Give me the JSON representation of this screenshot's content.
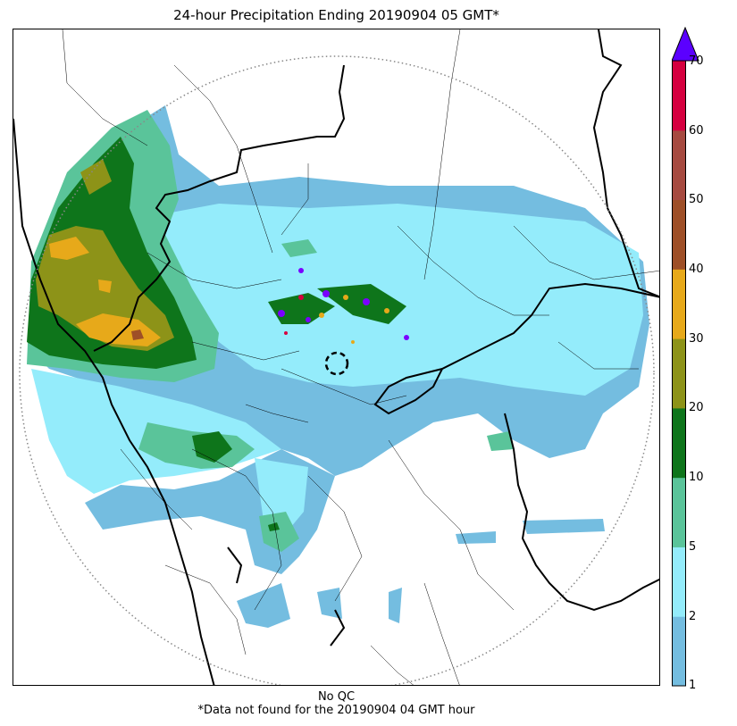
{
  "title": "24-hour Precipitation Ending 20190904 05 GMT*",
  "footer": {
    "line1": "No QC",
    "line2": "*Data not found for the 20190904 04 GMT hour"
  },
  "colorbar": {
    "levels": [
      "1",
      "2",
      "5",
      "10",
      "20",
      "30",
      "40",
      "50",
      "60",
      "70"
    ],
    "colors": [
      "#74bde0",
      "#94ecfb",
      "#5ac49a",
      "#0e751b",
      "#8d9318",
      "#e7a91a",
      "#9e4f27",
      "#a64a40",
      "#d5003f"
    ],
    "extend_color": "#5b00ff"
  },
  "map": {
    "radar_range_ring": "dotted",
    "radar_center": "dashed-circle",
    "notable_colors": {
      "light_blue": "#74bde0",
      "cyan": "#94ecfb",
      "green": "#5ac49a",
      "dark_green": "#0e751b",
      "olive": "#8d9318",
      "orange": "#e7a91a",
      "purple": "#7a00ff"
    }
  }
}
